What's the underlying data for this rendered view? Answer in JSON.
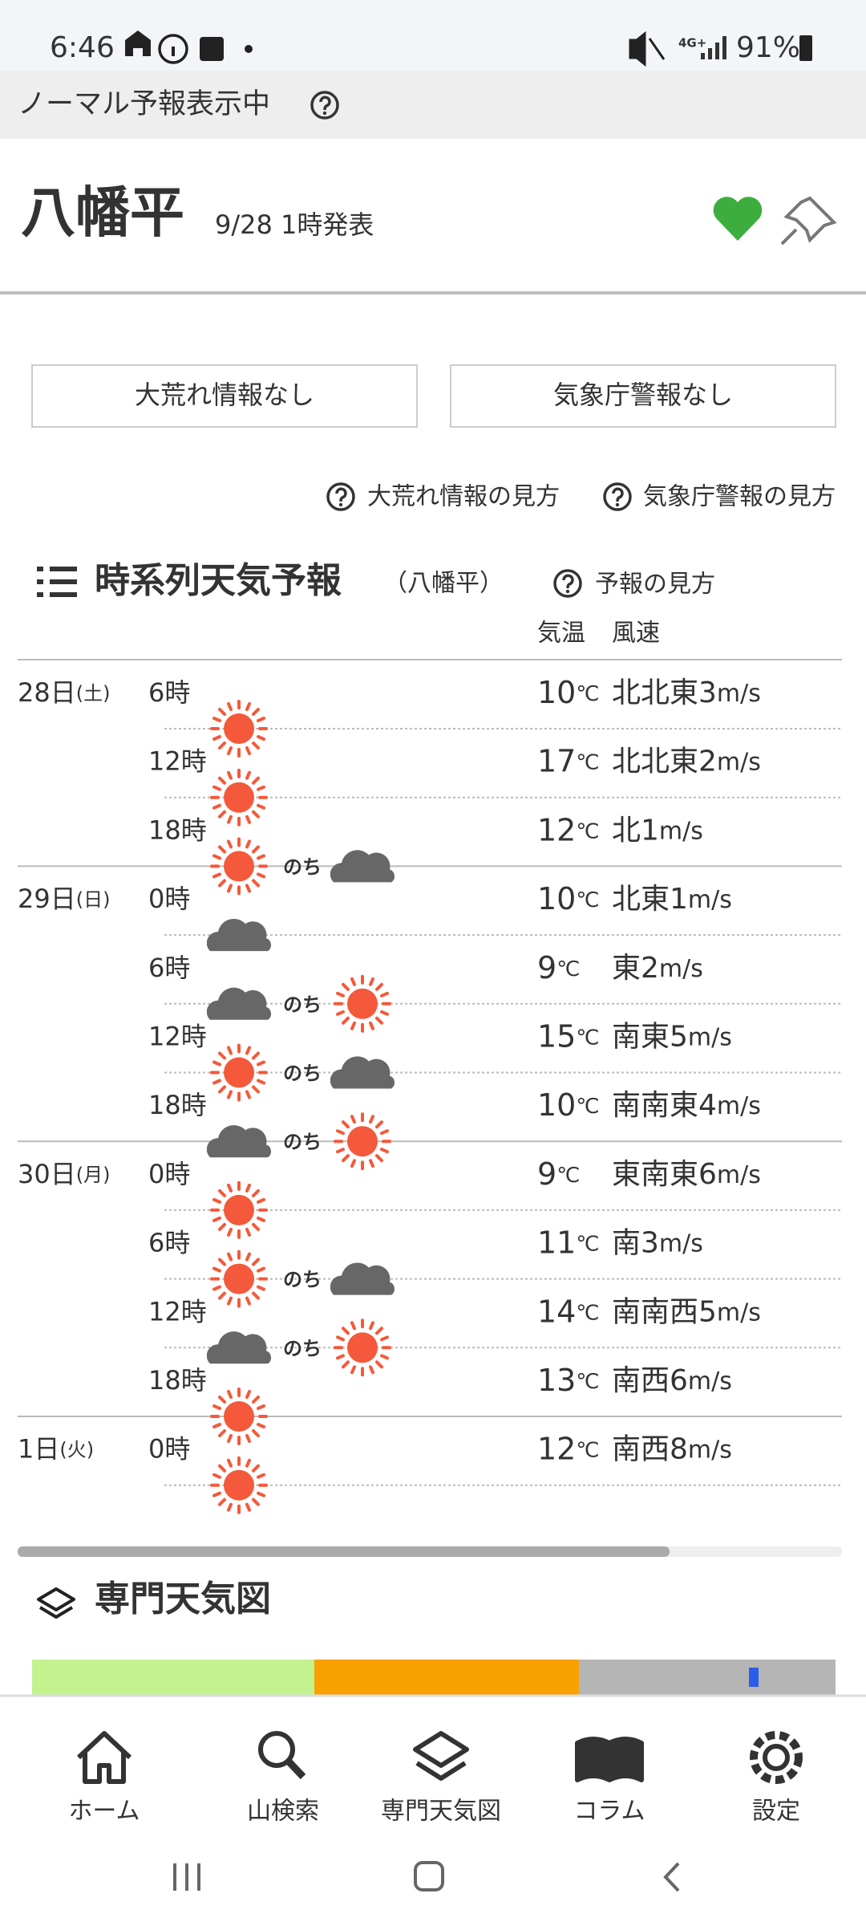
{
  "status_bar": {
    "time": "6:46",
    "network": "4G+",
    "battery": "91%"
  },
  "banner": {
    "text": "ノーマル予報表示中"
  },
  "header": {
    "title": "八幡平",
    "issued": "9/28 1時発表"
  },
  "alerts": [
    "大荒れ情報なし",
    "気象庁警報なし"
  ],
  "help_links": [
    "大荒れ情報の見方",
    "気象庁警報の見方"
  ],
  "forecast": {
    "title": "時系列天気予報",
    "location": "（八幡平）",
    "help": "予報の見方",
    "columns": [
      "気温",
      "風速"
    ],
    "temp_unit": "℃",
    "wind_unit": "m/s",
    "later": "のち",
    "rows": [
      {
        "date": "28日",
        "dow": "(土)",
        "time": "6時",
        "temp": "10",
        "wind": "北北東3"
      },
      {
        "time": "12時",
        "temp": "17",
        "wind": "北北東2"
      },
      {
        "time": "18時",
        "temp": "12",
        "wind": "北1"
      },
      {
        "date": "29日",
        "dow": "(日)",
        "time": "0時",
        "temp": "10",
        "wind": "北東1"
      },
      {
        "time": "6時",
        "temp": "9",
        "wind": "東2"
      },
      {
        "time": "12時",
        "temp": "15",
        "wind": "南東5"
      },
      {
        "time": "18時",
        "temp": "10",
        "wind": "南南東4"
      },
      {
        "date": "30日",
        "dow": "(月)",
        "time": "0時",
        "temp": "9",
        "wind": "東南東6"
      },
      {
        "time": "6時",
        "temp": "11",
        "wind": "南3"
      },
      {
        "time": "12時",
        "temp": "14",
        "wind": "南南西5"
      },
      {
        "time": "18時",
        "temp": "13",
        "wind": "南西6"
      },
      {
        "date": "1日",
        "dow": "(火)",
        "time": "0時",
        "temp": "12",
        "wind": "南西8"
      }
    ]
  },
  "section2": {
    "title": "専門天気図"
  },
  "nav": [
    "ホーム",
    "山検索",
    "専門天気図",
    "コラム",
    "設定"
  ]
}
